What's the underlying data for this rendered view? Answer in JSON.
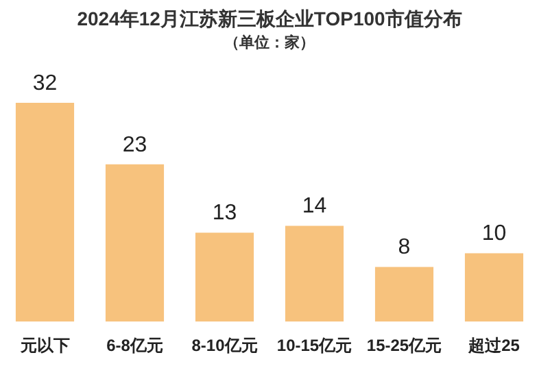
{
  "chart_data": {
    "type": "bar",
    "title": "2024年12月江苏新三板企业TOP100市值分布",
    "subtitle": "（单位：家）",
    "categories": [
      "元以下",
      "6-8亿元",
      "8-10亿元",
      "10-15亿元",
      "15-25亿元",
      "超过25"
    ],
    "values": [
      32,
      23,
      13,
      14,
      8,
      10
    ],
    "color": "#f7c27d",
    "data_labels": true,
    "grid": false,
    "legend": false
  }
}
